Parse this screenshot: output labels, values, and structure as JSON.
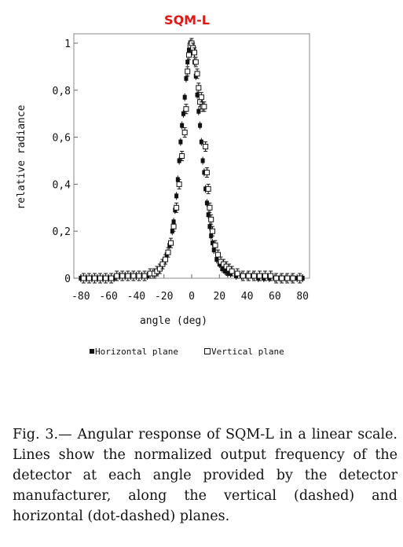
{
  "chart_data": {
    "type": "scatter",
    "title": "SQM-L",
    "xlabel": "angle (deg)",
    "ylabel": "relative radiance",
    "xlim": [
      -85,
      85
    ],
    "ylim": [
      0,
      1.04
    ],
    "xticks": [
      -80,
      -60,
      -40,
      -20,
      0,
      20,
      40,
      60,
      80
    ],
    "xtick_labels": [
      "-80",
      "-60",
      "-40",
      "-20",
      "0",
      "20",
      "40",
      "60",
      "80"
    ],
    "yticks": [
      0,
      0.2,
      0.4,
      0.6,
      0.8,
      1
    ],
    "ytick_labels": [
      "0",
      "0,2",
      "0,4",
      "0,6",
      "0,8",
      "1"
    ],
    "legend_position": "bottom",
    "grid": false,
    "series": [
      {
        "name": "Horizontal plane",
        "marker": "filled-square",
        "color": "#111111",
        "x": [
          -80,
          -76,
          -72,
          -68,
          -64,
          -60,
          -56,
          -52,
          -48,
          -44,
          -40,
          -36,
          -32,
          -28,
          -26,
          -24,
          -22,
          -20,
          -18,
          -16,
          -14,
          -13,
          -12,
          -11,
          -10,
          -9,
          -8,
          -7,
          -6,
          -5,
          -4,
          -3,
          -2,
          -1,
          0,
          1,
          2,
          3,
          4,
          5,
          6,
          7,
          8,
          9,
          10,
          11,
          12,
          13,
          14,
          15,
          16,
          18,
          20,
          22,
          24,
          26,
          28,
          32,
          36,
          40,
          44,
          48,
          52,
          56,
          60,
          64,
          68,
          72,
          76,
          80
        ],
        "y": [
          0.0,
          0.0,
          0.0,
          0.0,
          0.0,
          0.0,
          0.0,
          0.01,
          0.01,
          0.01,
          0.01,
          0.01,
          0.01,
          0.02,
          0.02,
          0.03,
          0.05,
          0.07,
          0.1,
          0.14,
          0.2,
          0.24,
          0.29,
          0.35,
          0.42,
          0.5,
          0.58,
          0.65,
          0.7,
          0.77,
          0.85,
          0.92,
          0.97,
          1.0,
          1.0,
          0.97,
          0.92,
          0.86,
          0.78,
          0.71,
          0.65,
          0.58,
          0.5,
          0.45,
          0.38,
          0.32,
          0.27,
          0.22,
          0.18,
          0.15,
          0.12,
          0.08,
          0.06,
          0.04,
          0.03,
          0.02,
          0.02,
          0.01,
          0.01,
          0.01,
          0.01,
          0.0,
          0.0,
          0.0,
          0.0,
          0.0,
          0.0,
          0.0,
          0.0,
          0.0
        ]
      },
      {
        "name": "Vertical plane",
        "marker": "open-square",
        "color": "#111111",
        "x": [
          -78,
          -74,
          -70,
          -66,
          -62,
          -58,
          -54,
          -50,
          -46,
          -42,
          -38,
          -34,
          -30,
          -27,
          -25,
          -23,
          -21,
          -19,
          -17,
          -15,
          -13,
          -11,
          -9,
          -7,
          -5,
          -4,
          -3,
          -2,
          -1,
          0,
          1,
          2,
          3,
          4,
          5,
          6,
          7,
          8,
          9,
          10,
          11,
          12,
          13,
          14,
          15,
          17,
          19,
          21,
          23,
          25,
          27,
          29,
          33,
          37,
          41,
          45,
          49,
          53,
          57,
          61,
          65,
          69,
          73,
          78
        ],
        "y": [
          0.0,
          0.0,
          0.0,
          0.0,
          0.0,
          0.0,
          0.01,
          0.01,
          0.01,
          0.01,
          0.01,
          0.01,
          0.02,
          0.02,
          0.03,
          0.04,
          0.06,
          0.08,
          0.11,
          0.15,
          0.22,
          0.3,
          0.4,
          0.52,
          0.62,
          0.72,
          0.88,
          0.95,
          0.99,
          1.0,
          0.98,
          0.96,
          0.92,
          0.87,
          0.81,
          0.75,
          0.77,
          0.73,
          0.73,
          0.56,
          0.45,
          0.38,
          0.3,
          0.25,
          0.2,
          0.14,
          0.1,
          0.07,
          0.06,
          0.05,
          0.04,
          0.03,
          0.02,
          0.01,
          0.01,
          0.01,
          0.01,
          0.01,
          0.01,
          0.0,
          0.0,
          0.0,
          0.0,
          0.0
        ]
      }
    ]
  },
  "legend": {
    "horizontal": "Horizontal plane",
    "vertical": "Vertical plane"
  },
  "caption": "Fig.  3.— Angular response of SQM-L in a linear scale. Lines show the normalized output frequency of the detector at each angle provided by the detector manufacturer, along the vertical (dashed) and horizontal (dot-dashed) planes."
}
